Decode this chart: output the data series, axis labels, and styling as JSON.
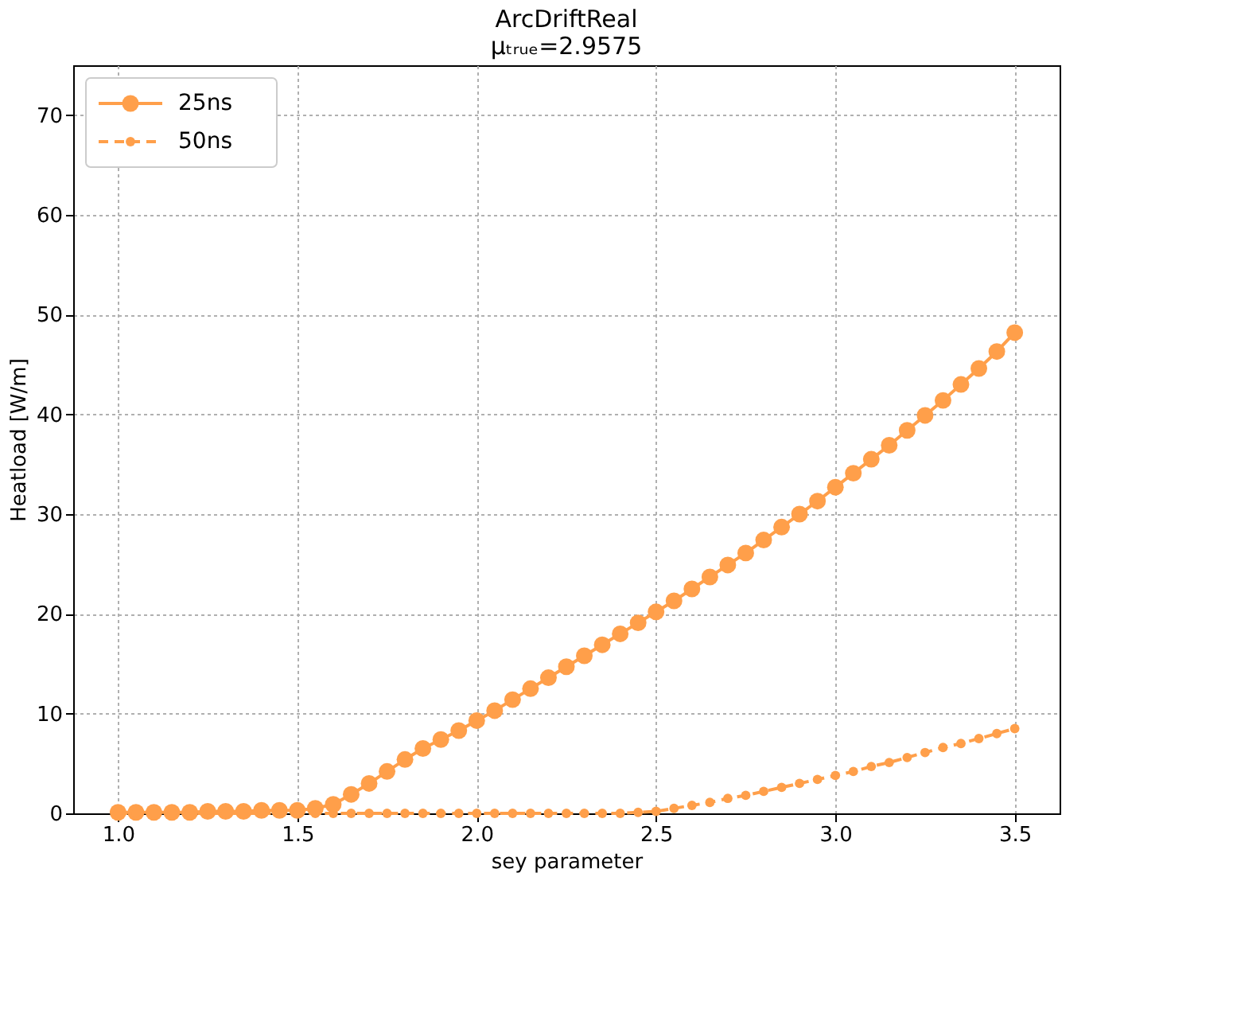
{
  "chart_data": {
    "type": "line",
    "title": [
      "ArcDriftReal",
      "μₜᵣᵤₑ=2.9575"
    ],
    "xlabel": "sey parameter",
    "ylabel": "Heatload [W/m]",
    "x": [
      1.0,
      1.05,
      1.1,
      1.15,
      1.2,
      1.25,
      1.3,
      1.35,
      1.4,
      1.45,
      1.5,
      1.55,
      1.6,
      1.65,
      1.7,
      1.75,
      1.8,
      1.85,
      1.9,
      1.95,
      2.0,
      2.05,
      2.1,
      2.15,
      2.2,
      2.25,
      2.3,
      2.35,
      2.4,
      2.45,
      2.5,
      2.55,
      2.6,
      2.65,
      2.7,
      2.75,
      2.8,
      2.85,
      2.9,
      2.95,
      3.0,
      3.05,
      3.1,
      3.15,
      3.2,
      3.25,
      3.3,
      3.35,
      3.4,
      3.45,
      3.5
    ],
    "series": [
      {
        "name": "25ns",
        "color": "#ff9f4a",
        "line_style": "solid",
        "values": [
          0.1,
          0.1,
          0.1,
          0.1,
          0.1,
          0.2,
          0.2,
          0.2,
          0.3,
          0.3,
          0.3,
          0.5,
          0.9,
          1.9,
          3.0,
          4.2,
          5.4,
          6.5,
          7.4,
          8.3,
          9.3,
          10.3,
          11.4,
          12.5,
          13.6,
          14.7,
          15.8,
          16.9,
          18.0,
          19.1,
          20.2,
          21.3,
          22.5,
          23.7,
          24.9,
          26.1,
          27.4,
          28.7,
          30.0,
          31.3,
          32.7,
          34.1,
          35.5,
          36.9,
          38.4,
          39.9,
          41.4,
          43.0,
          44.6,
          46.3,
          48.2
        ]
      },
      {
        "name": "50ns",
        "color": "#ff9f4a",
        "line_style": "dashed",
        "values": [
          0,
          0,
          0,
          0,
          0,
          0,
          0,
          0,
          0,
          0,
          0,
          0,
          0,
          0,
          0,
          0,
          0,
          0,
          0,
          0,
          0,
          0,
          0,
          0,
          0,
          0,
          0,
          0,
          0,
          0.1,
          0.2,
          0.5,
          0.8,
          1.1,
          1.5,
          1.8,
          2.2,
          2.6,
          3.0,
          3.4,
          3.8,
          4.2,
          4.7,
          5.1,
          5.6,
          6.1,
          6.6,
          7.0,
          7.5,
          8.0,
          8.5
        ]
      }
    ],
    "xlim": [
      0.875,
      3.625
    ],
    "xticks": [
      {
        "value": 1,
        "label": "1.0"
      },
      1.5,
      {
        "value": 2,
        "label": "2.0"
      },
      2.5,
      {
        "value": 3,
        "label": "3.0"
      },
      3.5
    ],
    "ylim": [
      0,
      75
    ],
    "yticks": [
      0,
      10,
      20,
      30,
      40,
      50,
      60,
      70
    ],
    "grid": true,
    "legend": "top left",
    "marker": "circle"
  }
}
